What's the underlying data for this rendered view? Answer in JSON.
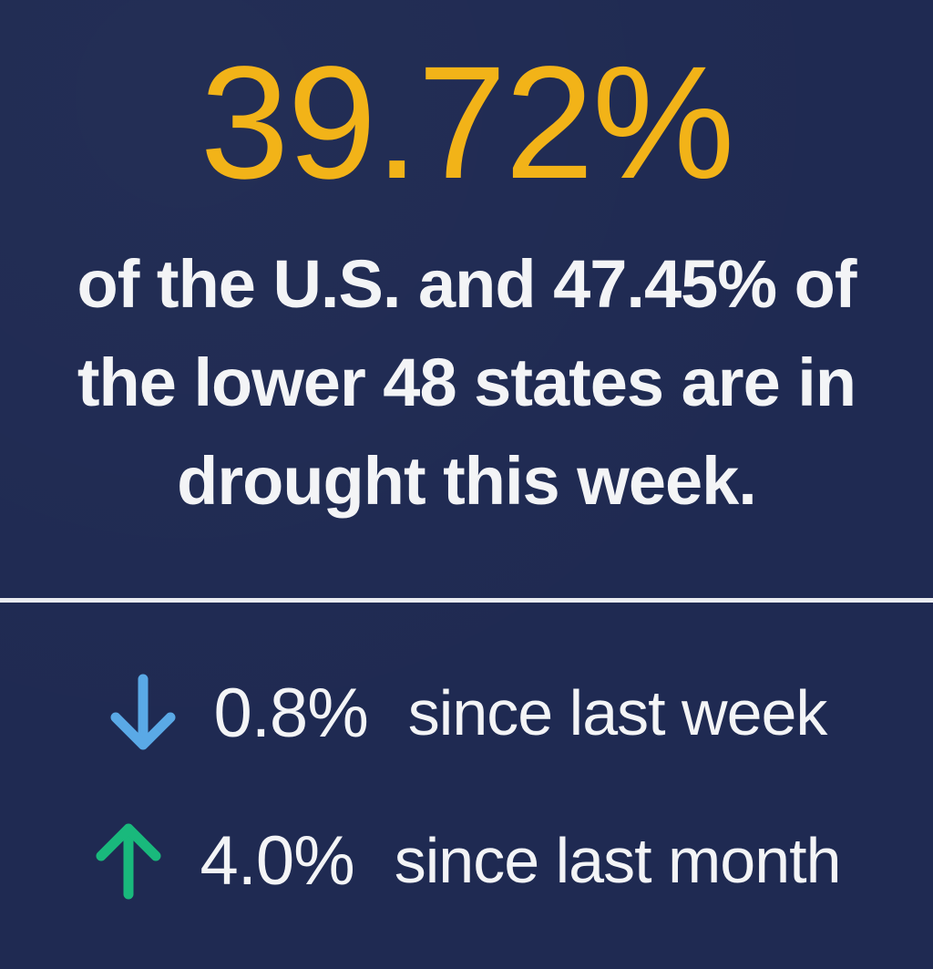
{
  "headline": {
    "value": "39.72%",
    "color": "#f2b318"
  },
  "description": {
    "lines": [
      "of the U.S. and 47.45% of",
      "the lower 48 states are in",
      "drought this week."
    ]
  },
  "stats": [
    {
      "direction_icon": "arrow-down-icon",
      "icon_color": "#5aa9e6",
      "value": "0.8%",
      "label": "since last week"
    },
    {
      "direction_icon": "arrow-up-icon",
      "icon_color": "#19b97c",
      "value": "4.0%",
      "label": "since last month"
    }
  ],
  "colors": {
    "background": "#1f2a52",
    "text": "#f3f4f6",
    "divider": "#e9ebf0"
  }
}
